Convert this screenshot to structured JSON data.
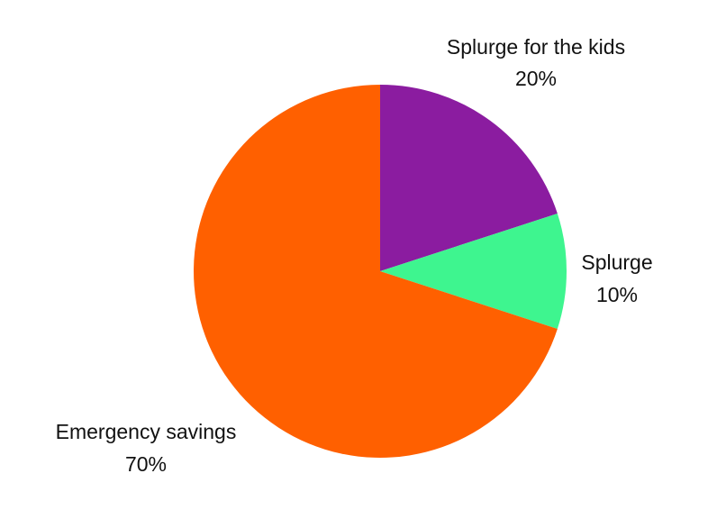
{
  "chart_data": {
    "type": "pie",
    "title": "",
    "start_angle_deg": 0,
    "direction": "clockwise",
    "slices": [
      {
        "label": "Splurge for the kids",
        "value": 20,
        "value_label": "20%",
        "color": "#8B1CA0"
      },
      {
        "label": "Splurge",
        "value": 10,
        "value_label": "10%",
        "color": "#3EF58F"
      },
      {
        "label": "Emergency savings",
        "value": 70,
        "value_label": "70%",
        "color": "#FF6000"
      }
    ]
  }
}
